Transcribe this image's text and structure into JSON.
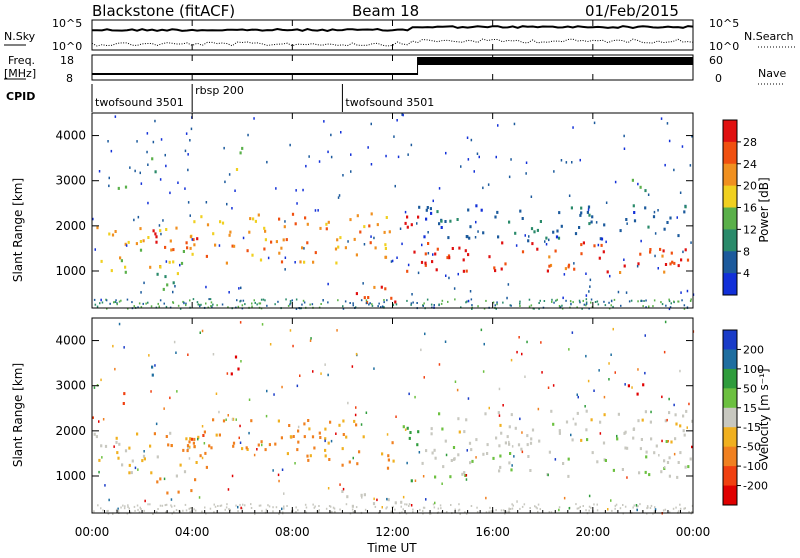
{
  "header": {
    "site": "Blackstone (fitACF)",
    "beam": "Beam 18",
    "date": "01/Feb/2015"
  },
  "strips": {
    "nsky_label": "N.Sky",
    "nsky_top": "10^5",
    "nsky_bottom": "10^0",
    "nsearch_label": "N.Search",
    "nsearch_top": "10^5",
    "nsearch_bottom": "10^0",
    "freq_label_1": "Freq.",
    "freq_label_2": "[MHz]",
    "freq_top": "18",
    "freq_bottom": "8",
    "nave_label": "Nave",
    "nave_top": "60",
    "nave_bottom": "0",
    "cpid_label": "CPID",
    "cpid_segments": [
      {
        "label": "twofsound 3501",
        "start_h": 0.0,
        "end_h": 4.0
      },
      {
        "label": "rbsp 200",
        "start_h": 4.0,
        "end_h": 10.0
      },
      {
        "label": "twofsound 3501",
        "start_h": 10.0,
        "end_h": 24.0
      }
    ]
  },
  "panels": {
    "power": {
      "ylabel": "Slant Range [km]",
      "yticks": [
        "1000",
        "2000",
        "3000",
        "4000"
      ],
      "colorbar_label": "Power [dB]",
      "colorbar_ticks": [
        "4",
        "8",
        "12",
        "16",
        "20",
        "24",
        "28"
      ],
      "colorbar_colors": [
        "#1230d8",
        "#1c5a9c",
        "#2a8a6a",
        "#5ab04a",
        "#f0d020",
        "#f09020",
        "#f05010",
        "#e01010"
      ]
    },
    "velocity": {
      "ylabel": "Slant Range [km]",
      "yticks": [
        "1000",
        "2000",
        "3000",
        "4000"
      ],
      "colorbar_label": "Velocity [m s⁻¹]",
      "colorbar_ticks": [
        "200",
        "100",
        "50",
        "15",
        "-15",
        "-50",
        "-100",
        "-200"
      ],
      "colorbar_colors": [
        "#1a3cc8",
        "#1f6ea0",
        "#2f9c3c",
        "#6cc040",
        "#c8c8c0",
        "#f0b020",
        "#f08020",
        "#f04010",
        "#e00000"
      ]
    }
  },
  "xaxis": {
    "label": "Time UT",
    "ticks": [
      "00:00",
      "04:00",
      "08:00",
      "12:00",
      "16:00",
      "20:00",
      "00:00"
    ]
  },
  "chart_data": {
    "type": "heatmap",
    "title": "Blackstone (fitACF)   Beam 18   01/Feb/2015",
    "xlabel": "Time UT",
    "ylabel": "Slant Range [km]",
    "xlim_hours": [
      0,
      24
    ],
    "ylim_km": [
      180,
      4500
    ],
    "power_range_db": [
      0,
      30
    ],
    "velocity_range_ms": [
      -250,
      250
    ],
    "echo_regions": [
      {
        "t0": 0.0,
        "t1": 4.0,
        "r0": 1000,
        "r1": 2000,
        "power_db": 18,
        "velocity_ms": -20
      },
      {
        "t0": 1.0,
        "t1": 1.5,
        "r0": 2400,
        "r1": 2900,
        "power_db": 12,
        "velocity_ms": -180
      },
      {
        "t0": 2.3,
        "t1": 4.5,
        "r0": 1500,
        "r1": 2100,
        "power_db": 26,
        "velocity_ms": -90
      },
      {
        "t0": 2.3,
        "t1": 2.6,
        "r0": 3100,
        "r1": 3700,
        "power_db": 10,
        "velocity_ms": 120
      },
      {
        "t0": 2.5,
        "t1": 4.2,
        "r0": 600,
        "r1": 1000,
        "power_db": 14,
        "velocity_ms": -70
      },
      {
        "t0": 4.0,
        "t1": 12.0,
        "r0": 1200,
        "r1": 2300,
        "power_db": 20,
        "velocity_ms": -60
      },
      {
        "t0": 5.5,
        "t1": 6.0,
        "r0": 3200,
        "r1": 3800,
        "power_db": 16,
        "velocity_ms": -220
      },
      {
        "t0": 9.8,
        "t1": 12.5,
        "r0": 300,
        "r1": 700,
        "power_db": 26,
        "velocity_ms": 5
      },
      {
        "t0": 12.4,
        "t1": 13.0,
        "r0": 900,
        "r1": 2400,
        "power_db": 28,
        "velocity_ms": 60
      },
      {
        "t0": 13.0,
        "t1": 24.0,
        "r0": 1000,
        "r1": 1700,
        "power_db": 26,
        "velocity_ms": 5
      },
      {
        "t0": 13.0,
        "t1": 24.0,
        "r0": 1700,
        "r1": 2500,
        "power_db": 6,
        "velocity_ms": 0
      },
      {
        "t0": 21.0,
        "t1": 22.2,
        "r0": 2800,
        "r1": 3100,
        "power_db": 10,
        "velocity_ms": -200
      }
    ],
    "cpid": [
      {
        "name": "twofsound 3501",
        "start_h": 0,
        "end_h": 4
      },
      {
        "name": "rbsp 200",
        "start_h": 4,
        "end_h": 10
      },
      {
        "name": "twofsound 3501",
        "start_h": 10,
        "end_h": 24
      }
    ]
  }
}
